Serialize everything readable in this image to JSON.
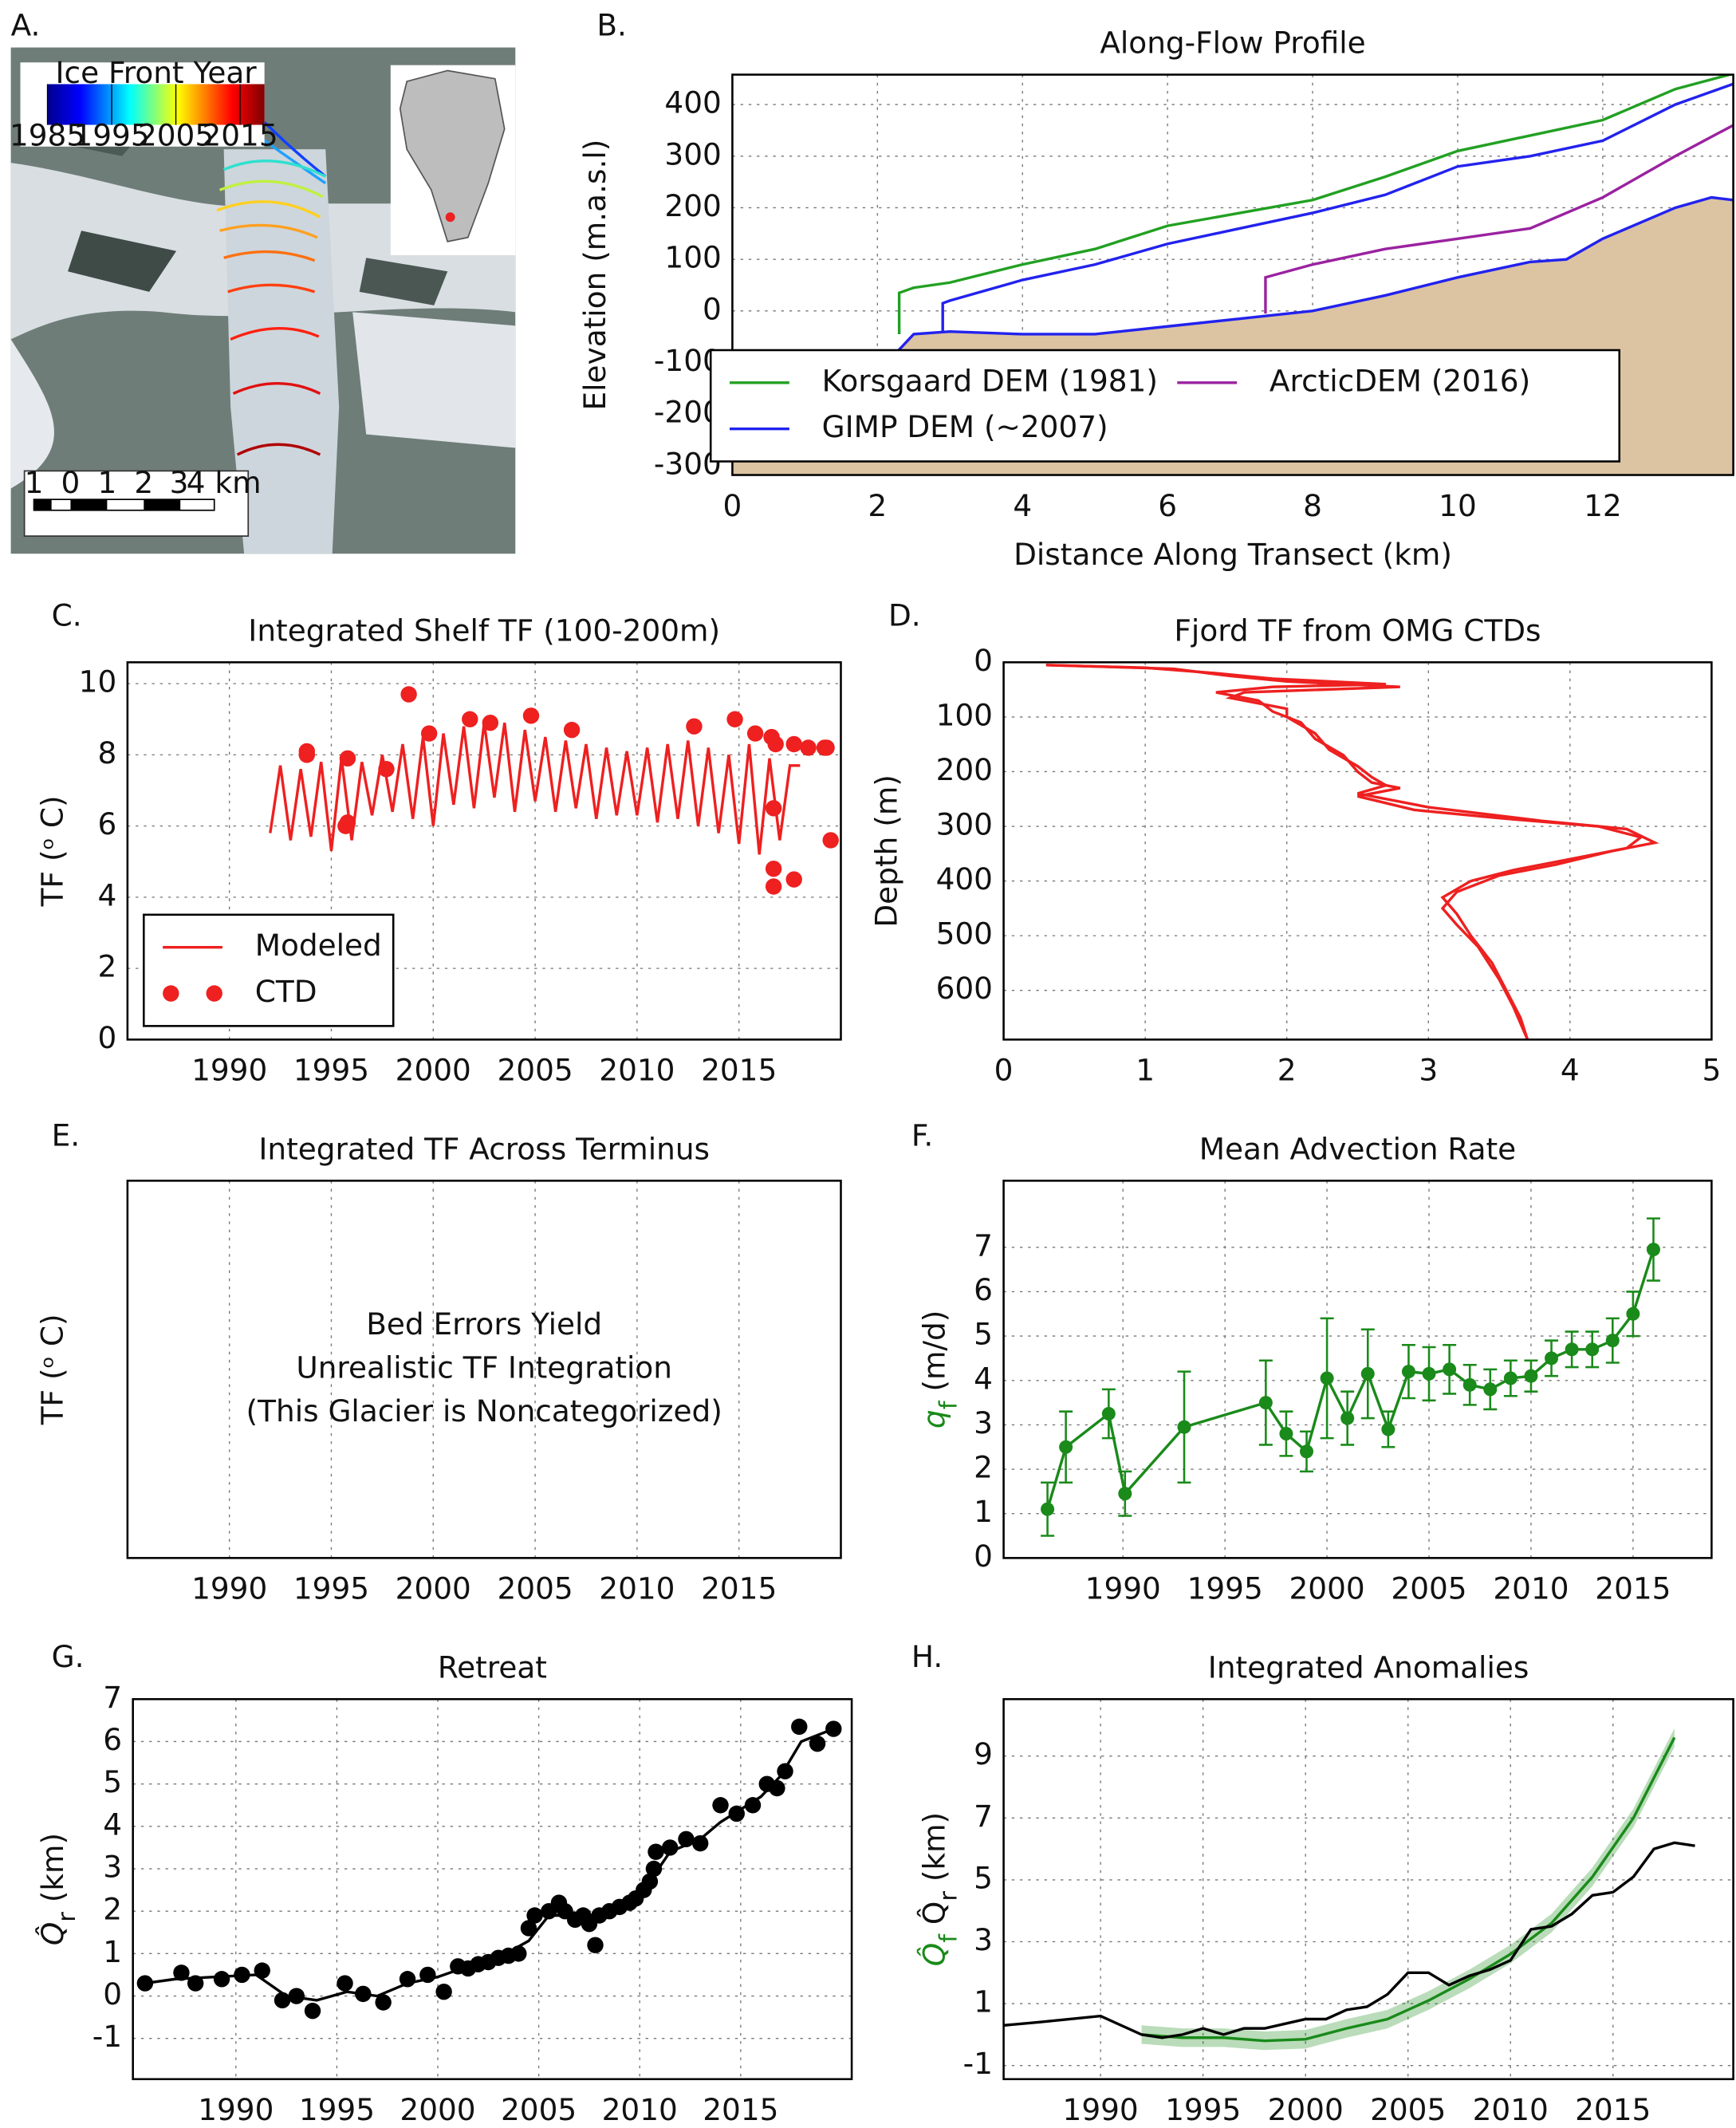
{
  "chart_data": [
    {
      "type": "map",
      "label": "A.",
      "colorbar_title": "Ice Front Year",
      "colorbar_lim": [
        1985,
        2018.8
      ],
      "colorbar_ticks": [
        1985,
        1995,
        2005,
        2015
      ],
      "scale_labels": [
        "1",
        "0",
        "1",
        "2",
        "3",
        "4 km"
      ]
    },
    {
      "type": "line",
      "label": "B.",
      "title": "Along-Flow Profile",
      "xlabel": "Distance Along Transect (km)",
      "ylabel": "Elevation (m.a.s.l)",
      "xlim": [
        0,
        13.8
      ],
      "ylim": [
        -318,
        458
      ],
      "xticks": [
        0,
        2,
        4,
        6,
        8,
        10,
        12
      ],
      "yticks": [
        -300,
        -200,
        -100,
        0,
        100,
        200,
        300,
        400
      ],
      "grid": true,
      "legend": "lower center",
      "legend_columns": 2,
      "series": [
        {
          "color": "#dcc4a2",
          "fill": true,
          "x": [
            0,
            1,
            1.6,
            2,
            2.5,
            3,
            4,
            5,
            6,
            7,
            8,
            9,
            10,
            11,
            11.5,
            12,
            13,
            13.5,
            13.8
          ],
          "values": [
            -270,
            -240,
            -200,
            -120,
            -45,
            -40,
            -45,
            -45,
            -30,
            -15,
            0,
            30,
            65,
            95,
            100,
            140,
            200,
            220,
            215
          ]
        },
        {
          "name": "Korsgaard DEM (1981)",
          "color": "#22a022",
          "mode": "lines",
          "x": [
            2.3,
            2.3,
            2.5,
            3,
            4,
            5,
            6,
            7,
            8,
            9,
            10,
            11,
            12,
            13,
            13.8
          ],
          "values": [
            -45,
            35,
            45,
            55,
            90,
            120,
            165,
            190,
            215,
            260,
            310,
            340,
            370,
            430,
            460
          ]
        },
        {
          "name": "GIMP DEM (~2007)",
          "color": "#2222ee",
          "mode": "lines",
          "x": [
            2.9,
            2.9,
            3,
            4,
            5,
            6,
            7,
            8,
            9,
            10,
            11,
            12,
            13,
            13.8
          ],
          "values": [
            -40,
            15,
            20,
            60,
            90,
            130,
            160,
            190,
            225,
            280,
            300,
            330,
            400,
            440
          ]
        },
        {
          "name": "ArcticDEM (2016)",
          "color": "#9a22a0",
          "mode": "lines",
          "x": [
            7.35,
            7.35,
            8,
            9,
            10,
            11,
            12,
            13,
            13.8
          ],
          "values": [
            -5,
            65,
            90,
            120,
            140,
            160,
            220,
            300,
            360
          ]
        }
      ]
    },
    {
      "type": "line",
      "label": "C.",
      "title": "Integrated Shelf TF (100-200m)",
      "ylabel": "TF (ᵒ C)",
      "ylabel_color": "#ee2020",
      "xlim": [
        1985,
        2020
      ],
      "ylim": [
        0,
        10.6
      ],
      "xticks": [
        1990,
        1995,
        2000,
        2005,
        2010,
        2015
      ],
      "yticks": [
        0,
        2,
        4,
        6,
        8,
        10
      ],
      "grid": true,
      "legend": "lower left",
      "series": [
        {
          "name": "Modeled",
          "color": "#ee2020",
          "mode": "lines",
          "x": [
            1992,
            1992.5,
            1993,
            1993.5,
            1994,
            1994.5,
            1995,
            1995.5,
            1996,
            1996.5,
            1997,
            1997.5,
            1998,
            1998.5,
            1999,
            1999.5,
            2000,
            2000.5,
            2001,
            2001.5,
            2002,
            2002.5,
            2003,
            2003.5,
            2004,
            2004.5,
            2005,
            2005.5,
            2006,
            2006.5,
            2007,
            2007.5,
            2008,
            2008.5,
            2009,
            2009.5,
            2010,
            2010.5,
            2011,
            2011.5,
            2012,
            2012.5,
            2013,
            2013.5,
            2014,
            2014.5,
            2015,
            2015.5,
            2016,
            2016.5,
            2017,
            2017.5,
            2018
          ],
          "values": [
            5.8,
            7.7,
            5.6,
            7.6,
            5.7,
            7.8,
            5.3,
            7.9,
            5.6,
            7.8,
            6.3,
            8.0,
            6.4,
            8.3,
            6.2,
            8.5,
            6.0,
            8.6,
            6.6,
            8.8,
            6.5,
            8.9,
            6.8,
            8.9,
            6.4,
            8.7,
            6.7,
            8.5,
            6.4,
            8.4,
            6.5,
            8.3,
            6.2,
            8.2,
            6.3,
            8.1,
            6.3,
            8.2,
            6.1,
            8.3,
            6.2,
            8.4,
            6.0,
            8.2,
            5.8,
            8.0,
            5.5,
            8.3,
            5.2,
            7.9,
            5.6,
            7.7,
            7.7
          ]
        },
        {
          "name": "CTD",
          "color": "#ee2020",
          "mode": "markers",
          "x": [
            1993.8,
            1993.8,
            1995.7,
            1995.8,
            1995.8,
            1997.7,
            1998.8,
            1999.8,
            2001.8,
            2002.8,
            2004.8,
            2006.8,
            2012.8,
            2014.8,
            2015.8,
            2016.6,
            2016.7,
            2016.7,
            2016.7,
            2016.8,
            2017.7,
            2017.7,
            2018.4,
            2019.2,
            2019.3,
            2019.5
          ],
          "values": [
            8.0,
            8.1,
            6.0,
            6.1,
            7.9,
            7.6,
            9.7,
            8.6,
            9.0,
            8.9,
            9.1,
            8.7,
            8.8,
            9.0,
            8.6,
            8.5,
            6.5,
            4.8,
            4.3,
            8.3,
            4.5,
            8.3,
            8.2,
            8.2,
            8.2,
            5.6
          ]
        }
      ]
    },
    {
      "type": "line",
      "label": "D.",
      "title": "Fjord TF from OMG CTDs",
      "ylabel": "Depth (m)",
      "xlim": [
        0,
        5
      ],
      "ylim": [
        690,
        0
      ],
      "xticks": [
        0,
        1,
        2,
        3,
        4,
        5
      ],
      "yticks": [
        0,
        100,
        200,
        300,
        400,
        500,
        600
      ],
      "grid": true,
      "series": [
        {
          "color": "#ee2020",
          "mode": "lines",
          "x": [
            0.3,
            1.0,
            1.5,
            1.9,
            2.7,
            1.9,
            1.5,
            1.8,
            1.9,
            2.1,
            2.2,
            2.4,
            2.5,
            2.6,
            2.8,
            2.5,
            2.9,
            3.5,
            4.2,
            4.5,
            4.4,
            4.0,
            3.6,
            3.3,
            3.1,
            3.2,
            3.3,
            3.45,
            3.55,
            3.65,
            3.7
          ],
          "values": [
            5,
            10,
            20,
            30,
            40,
            45,
            55,
            70,
            90,
            110,
            140,
            170,
            200,
            220,
            230,
            245,
            270,
            285,
            300,
            320,
            340,
            360,
            380,
            400,
            430,
            460,
            500,
            550,
            600,
            650,
            690
          ]
        },
        {
          "color": "#ee2020",
          "mode": "lines",
          "x": [
            0.3,
            1.2,
            1.6,
            2.0,
            2.8,
            1.7,
            1.6,
            2.0,
            2.0,
            2.2,
            2.3,
            2.5,
            2.6,
            2.7,
            2.5,
            3.0,
            3.8,
            4.4,
            4.6,
            4.3,
            3.9,
            3.5,
            3.2,
            3.1,
            3.2,
            3.35,
            3.5,
            3.6,
            3.7
          ],
          "values": [
            5,
            12,
            25,
            35,
            45,
            55,
            65,
            85,
            100,
            130,
            160,
            190,
            210,
            225,
            240,
            265,
            290,
            305,
            330,
            345,
            370,
            390,
            420,
            450,
            480,
            520,
            580,
            630,
            690
          ]
        }
      ]
    },
    {
      "type": "text",
      "label": "E.",
      "title": "Integrated TF Across Terminus",
      "ylabel": "TF (ᵒ C)",
      "ylabel_color": "#ee2020",
      "xlim": [
        1985,
        2020
      ],
      "xticks": [
        1990,
        1995,
        2000,
        2005,
        2010,
        2015
      ],
      "grid": true,
      "annotation": [
        "Bed Errors Yield",
        "Unrealistic TF Integration",
        "(This Glacier is Noncategorized)"
      ],
      "annotation_color": "#ee2020"
    },
    {
      "type": "errorbar",
      "label": "F.",
      "title": "Mean Advection Rate",
      "ylabel": [
        {
          "text": "q",
          "color": "#1a8a1a"
        },
        {
          "text": "f",
          "color": "#1a8a1a",
          "sub": true
        },
        {
          "text": " (m/d)"
        }
      ],
      "xlim": [
        1984.15,
        2018.85
      ],
      "ylim": [
        0,
        8.5
      ],
      "xticks": [
        1990,
        1995,
        2000,
        2005,
        2010,
        2015
      ],
      "yticks": [
        0,
        1,
        2,
        3,
        4,
        5,
        6,
        7
      ],
      "grid": true,
      "series": [
        {
          "color": "#1a8a1a",
          "mode": "lines+markers",
          "error_style": "bars",
          "x": [
            1986.3,
            1987.2,
            1989.3,
            1990.1,
            1993.0,
            1997,
            1998,
            1999,
            2000,
            2001,
            2002,
            2003,
            2004,
            2005,
            2006,
            2007,
            2008,
            2009,
            2010,
            2011,
            2012,
            2013,
            2014,
            2015,
            2016
          ],
          "values": [
            1.1,
            2.5,
            3.25,
            1.45,
            2.95,
            3.5,
            2.8,
            2.4,
            4.05,
            3.15,
            4.15,
            2.9,
            4.2,
            4.15,
            4.25,
            3.9,
            3.8,
            4.05,
            4.1,
            4.5,
            4.7,
            4.7,
            4.9,
            5.5,
            6.95
          ],
          "errors": [
            0.6,
            0.8,
            0.55,
            0.5,
            1.25,
            0.95,
            0.5,
            0.45,
            1.35,
            0.6,
            1.0,
            0.4,
            0.6,
            0.6,
            0.55,
            0.45,
            0.45,
            0.4,
            0.35,
            0.4,
            0.4,
            0.4,
            0.5,
            0.5,
            0.7
          ]
        }
      ]
    },
    {
      "type": "scatter",
      "label": "G.",
      "title": "Retreat",
      "ylabel": [
        {
          "text": "Q̂"
        },
        {
          "text": "r",
          "sub": true
        },
        {
          "text": "  (km)"
        }
      ],
      "xlim": [
        1984.9,
        2020.5
      ],
      "ylim": [
        -1.96,
        7
      ],
      "xticks": [
        1990,
        1995,
        2000,
        2005,
        2010,
        2015
      ],
      "yticks": [
        -1,
        0,
        1,
        2,
        3,
        4,
        5,
        6,
        7
      ],
      "grid": true,
      "series": [
        {
          "color": "#000000",
          "mode": "markers",
          "x": [
            1985.5,
            1987.3,
            1988,
            1989.3,
            1990.3,
            1991.3,
            1992.3,
            1993,
            1993.8,
            1995.4,
            1996.3,
            1997.3,
            1998.5,
            1999.5,
            2000.3,
            2001,
            2001.5,
            2002,
            2002.5,
            2003,
            2003.5,
            2004,
            2004.5,
            2004.8,
            2005.5,
            2006,
            2006.3,
            2006.8,
            2007.2,
            2007.5,
            2007.8,
            2008,
            2008.5,
            2009,
            2009.5,
            2009.8,
            2010.2,
            2010.5,
            2010.7,
            2010.8,
            2011.5,
            2012.3,
            2013,
            2014,
            2014.8,
            2015.6,
            2016.3,
            2016.8,
            2017.2,
            2017.9,
            2018.8,
            2019.6
          ],
          "values": [
            0.3,
            0.55,
            0.3,
            0.4,
            0.5,
            0.6,
            -0.1,
            0.0,
            -0.35,
            0.3,
            0.05,
            -0.15,
            0.4,
            0.5,
            0.1,
            0.7,
            0.65,
            0.75,
            0.8,
            0.9,
            0.95,
            1.0,
            1.6,
            1.9,
            2.0,
            2.2,
            2.0,
            1.8,
            1.9,
            1.7,
            1.2,
            1.9,
            2.0,
            2.1,
            2.2,
            2.3,
            2.5,
            2.7,
            3.0,
            3.4,
            3.5,
            3.7,
            3.6,
            4.5,
            4.3,
            4.5,
            5.0,
            4.9,
            5.3,
            6.35,
            5.95,
            6.3
          ]
        },
        {
          "color": "#000000",
          "mode": "lines",
          "x": [
            1985.5,
            1987,
            1989,
            1991,
            1992.5,
            1994,
            1995.5,
            1997,
            1998.5,
            2000,
            2001.5,
            2003,
            2004.5,
            2005.5,
            2007,
            2008.5,
            2009.5,
            2010.5,
            2011.5,
            2013,
            2014,
            2015,
            2016,
            2017,
            2018,
            2019.6
          ],
          "values": [
            0.3,
            0.4,
            0.45,
            0.5,
            0.0,
            -0.1,
            0.1,
            0.0,
            0.3,
            0.45,
            0.7,
            0.9,
            1.3,
            1.9,
            1.9,
            1.9,
            2.2,
            2.7,
            3.4,
            3.7,
            4.1,
            4.4,
            4.7,
            5.2,
            6.0,
            6.3
          ]
        }
      ]
    },
    {
      "type": "line",
      "label": "H.",
      "title": "Integrated Anomalies",
      "ylabel": [
        {
          "text": "Q̂",
          "color": "#1a8a1a"
        },
        {
          "text": "f",
          "color": "#1a8a1a",
          "sub": true
        },
        {
          "text": " Q̂"
        },
        {
          "text": "r",
          "sub": true
        },
        {
          "text": " (km)"
        }
      ],
      "xlim": [
        1985.27,
        2020.87
      ],
      "ylim": [
        -1.44,
        10.84
      ],
      "xticks": [
        1990,
        1995,
        2000,
        2005,
        2010,
        2015
      ],
      "yticks": [
        -1,
        1,
        3,
        5,
        7,
        9
      ],
      "grid": true,
      "series": [
        {
          "color": "#1a8a1a",
          "mode": "lines",
          "error_style": "band",
          "x": [
            1992,
            1994,
            1996,
            1998,
            2000,
            2002,
            2004,
            2006,
            2008,
            2010,
            2012,
            2014,
            2016,
            2017,
            2018
          ],
          "values": [
            0,
            -0.1,
            -0.1,
            -0.2,
            -0.15,
            0.2,
            0.5,
            1.1,
            1.8,
            2.6,
            3.6,
            5.1,
            7.0,
            8.3,
            9.6
          ],
          "errors": [
            0.3,
            0.3,
            0.3,
            0.3,
            0.3,
            0.3,
            0.3,
            0.3,
            0.3,
            0.3,
            0.3,
            0.3,
            0.3,
            0.3,
            0.3
          ]
        },
        {
          "color": "#000000",
          "mode": "lines",
          "x": [
            1985.3,
            1987,
            1990,
            1991,
            1992,
            1993,
            1994,
            1995,
            1996,
            1997,
            1998,
            2000,
            2001,
            2002,
            2003,
            2004,
            2005,
            2006,
            2007,
            2008,
            2009,
            2010,
            2011,
            2012,
            2013,
            2014,
            2015,
            2016,
            2017,
            2018,
            2019
          ],
          "values": [
            0.3,
            0.4,
            0.6,
            0.3,
            0,
            -0.1,
            0,
            0.2,
            0,
            0.2,
            0.2,
            0.5,
            0.5,
            0.8,
            0.9,
            1.3,
            2.0,
            2.0,
            1.6,
            1.9,
            2.1,
            2.4,
            3.4,
            3.5,
            3.9,
            4.5,
            4.6,
            5.1,
            6.0,
            6.2,
            6.1
          ]
        }
      ]
    }
  ]
}
